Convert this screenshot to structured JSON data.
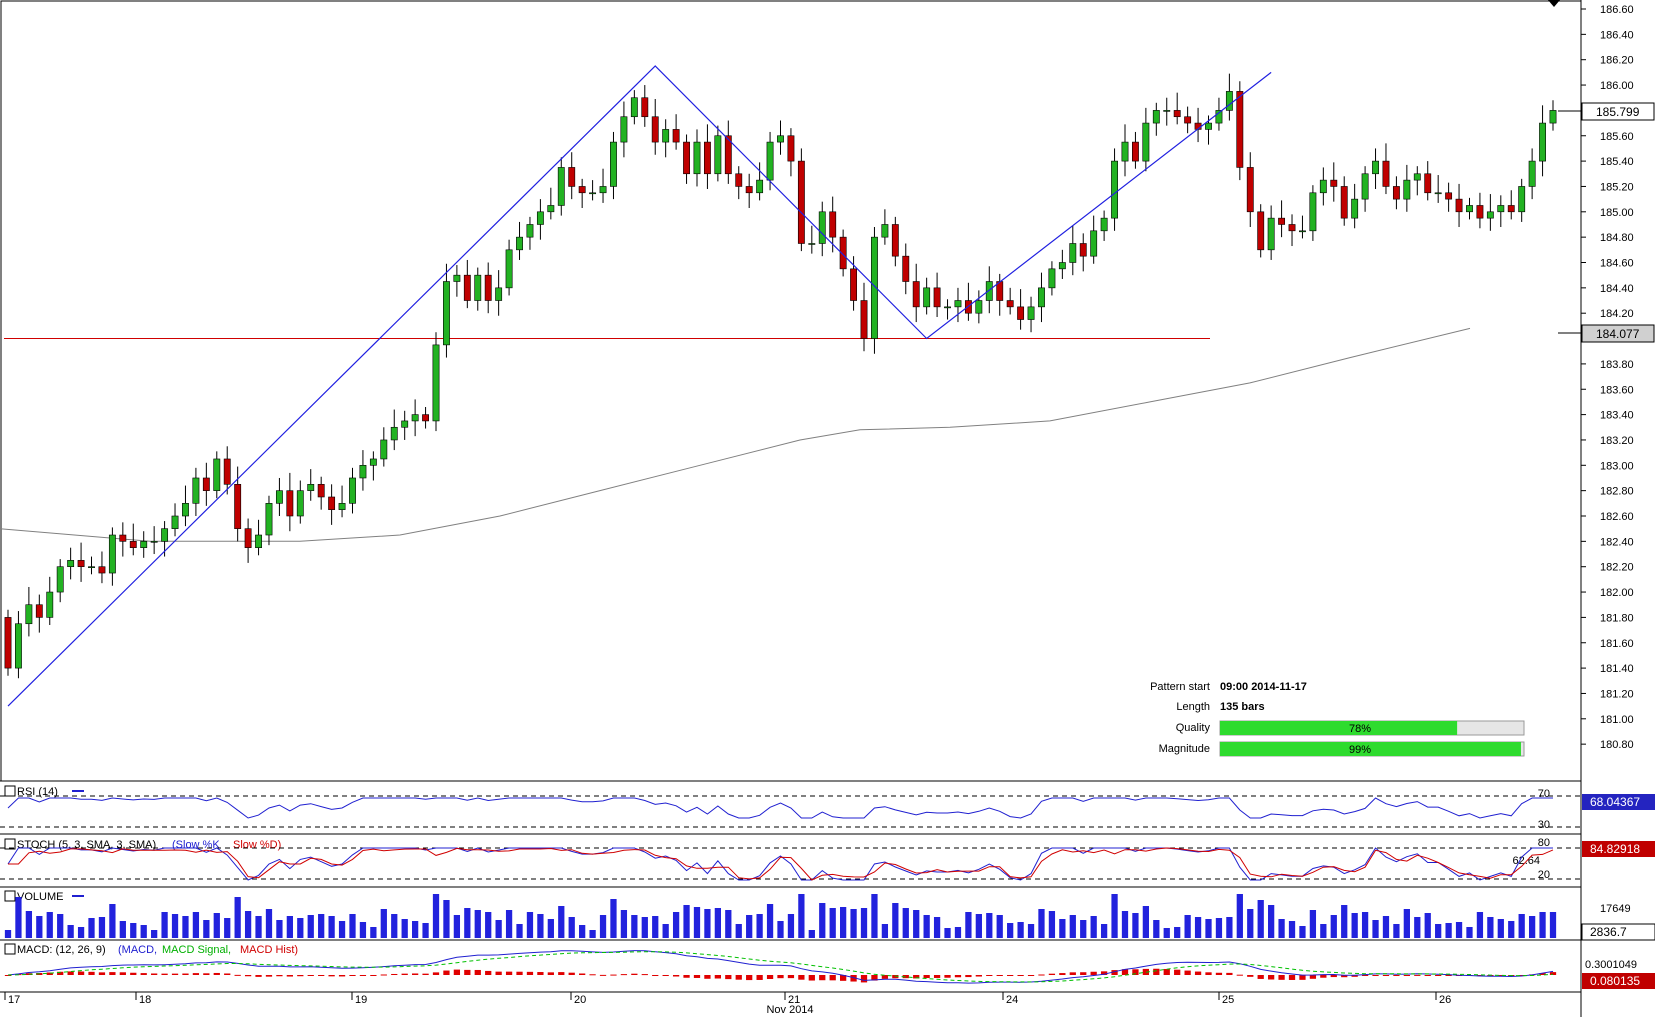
{
  "chart_data": {
    "type": "candlestick",
    "instrument_last_price": "185.799",
    "ma_value": "184.077",
    "y_ticks": [
      "186.60",
      "186.40",
      "186.20",
      "186.00",
      "185.80",
      "185.60",
      "185.40",
      "185.20",
      "185.00",
      "184.80",
      "184.60",
      "184.40",
      "184.20",
      "184.00",
      "183.80",
      "183.60",
      "183.40",
      "183.20",
      "183.00",
      "182.80",
      "182.60",
      "182.40",
      "182.20",
      "182.00",
      "181.80",
      "181.60",
      "181.40",
      "181.20",
      "181.00",
      "180.80"
    ],
    "ylim": [
      180.8,
      186.7
    ],
    "x_ticks": [
      "17",
      "18",
      "19",
      "20",
      "21",
      "24",
      "25",
      "26"
    ],
    "x_month": "Nov 2014",
    "support_level": 184.0,
    "pattern_points": [
      181.1,
      186.15,
      184.0,
      186.1
    ],
    "candles": [
      [
        181.8,
        181.4
      ],
      [
        181.4,
        181.75
      ],
      [
        181.75,
        181.9
      ],
      [
        181.9,
        181.8
      ],
      [
        181.8,
        182.0
      ],
      [
        182.0,
        182.2
      ],
      [
        182.2,
        182.25
      ],
      [
        182.25,
        182.2
      ],
      [
        182.2,
        182.2
      ],
      [
        182.2,
        182.15
      ],
      [
        182.15,
        182.45
      ],
      [
        182.45,
        182.4
      ],
      [
        182.4,
        182.35
      ],
      [
        182.35,
        182.4
      ],
      [
        182.4,
        182.4
      ],
      [
        182.4,
        182.5
      ],
      [
        182.5,
        182.6
      ],
      [
        182.6,
        182.7
      ],
      [
        182.7,
        182.9
      ],
      [
        182.9,
        182.8
      ],
      [
        182.8,
        183.05
      ],
      [
        183.05,
        182.85
      ],
      [
        182.85,
        182.5
      ],
      [
        182.5,
        182.35
      ],
      [
        182.35,
        182.45
      ],
      [
        182.45,
        182.7
      ],
      [
        182.7,
        182.8
      ],
      [
        182.8,
        182.6
      ],
      [
        182.6,
        182.8
      ],
      [
        182.8,
        182.85
      ],
      [
        182.85,
        182.75
      ],
      [
        182.75,
        182.65
      ],
      [
        182.65,
        182.7
      ],
      [
        182.7,
        182.9
      ],
      [
        182.9,
        183.0
      ],
      [
        183.0,
        183.05
      ],
      [
        183.05,
        183.2
      ],
      [
        183.2,
        183.3
      ],
      [
        183.3,
        183.35
      ],
      [
        183.35,
        183.4
      ],
      [
        183.4,
        183.35
      ],
      [
        183.35,
        183.95
      ],
      [
        183.95,
        184.45
      ],
      [
        184.45,
        184.5
      ],
      [
        184.5,
        184.3
      ],
      [
        184.3,
        184.5
      ],
      [
        184.5,
        184.3
      ],
      [
        184.3,
        184.4
      ],
      [
        184.4,
        184.7
      ],
      [
        184.7,
        184.8
      ],
      [
        184.8,
        184.9
      ],
      [
        184.9,
        185.0
      ],
      [
        185.0,
        185.05
      ],
      [
        185.05,
        185.35
      ],
      [
        185.35,
        185.2
      ],
      [
        185.2,
        185.15
      ],
      [
        185.15,
        185.15
      ],
      [
        185.15,
        185.2
      ],
      [
        185.2,
        185.55
      ],
      [
        185.55,
        185.75
      ],
      [
        185.75,
        185.9
      ],
      [
        185.9,
        185.75
      ],
      [
        185.75,
        185.55
      ],
      [
        185.55,
        185.65
      ],
      [
        185.65,
        185.55
      ],
      [
        185.55,
        185.3
      ],
      [
        185.3,
        185.55
      ],
      [
        185.55,
        185.3
      ],
      [
        185.3,
        185.6
      ],
      [
        185.6,
        185.3
      ],
      [
        185.3,
        185.2
      ],
      [
        185.2,
        185.15
      ],
      [
        185.15,
        185.25
      ],
      [
        185.25,
        185.55
      ],
      [
        185.55,
        185.6
      ],
      [
        185.6,
        185.4
      ],
      [
        185.4,
        184.75
      ],
      [
        184.75,
        184.75
      ],
      [
        184.75,
        185.0
      ],
      [
        185.0,
        184.8
      ],
      [
        184.8,
        184.55
      ],
      [
        184.55,
        184.3
      ],
      [
        184.3,
        184.0
      ],
      [
        184.0,
        184.8
      ],
      [
        184.8,
        184.9
      ],
      [
        184.9,
        184.65
      ],
      [
        184.65,
        184.45
      ],
      [
        184.45,
        184.25
      ],
      [
        184.25,
        184.4
      ],
      [
        184.4,
        184.25
      ],
      [
        184.25,
        184.25
      ],
      [
        184.25,
        184.3
      ],
      [
        184.3,
        184.2
      ],
      [
        184.2,
        184.3
      ],
      [
        184.3,
        184.45
      ],
      [
        184.45,
        184.3
      ],
      [
        184.3,
        184.25
      ],
      [
        184.25,
        184.15
      ],
      [
        184.15,
        184.25
      ],
      [
        184.25,
        184.4
      ],
      [
        184.4,
        184.55
      ],
      [
        184.55,
        184.6
      ],
      [
        184.6,
        184.75
      ],
      [
        184.75,
        184.65
      ],
      [
        184.65,
        184.85
      ],
      [
        184.85,
        184.95
      ],
      [
        184.95,
        185.4
      ],
      [
        185.4,
        185.55
      ],
      [
        185.55,
        185.4
      ],
      [
        185.4,
        185.7
      ],
      [
        185.7,
        185.8
      ],
      [
        185.8,
        185.8
      ],
      [
        185.8,
        185.75
      ],
      [
        185.75,
        185.7
      ],
      [
        185.7,
        185.65
      ],
      [
        185.65,
        185.7
      ],
      [
        185.7,
        185.8
      ],
      [
        185.8,
        185.95
      ],
      [
        185.95,
        185.35
      ],
      [
        185.35,
        185.0
      ],
      [
        185.0,
        184.7
      ],
      [
        184.7,
        184.95
      ],
      [
        184.95,
        184.9
      ],
      [
        184.9,
        184.85
      ],
      [
        184.85,
        184.85
      ],
      [
        184.85,
        185.15
      ],
      [
        185.15,
        185.25
      ],
      [
        185.25,
        185.2
      ],
      [
        185.2,
        184.95
      ],
      [
        184.95,
        185.1
      ],
      [
        185.1,
        185.3
      ],
      [
        185.3,
        185.4
      ],
      [
        185.4,
        185.2
      ],
      [
        185.2,
        185.1
      ],
      [
        185.1,
        185.25
      ],
      [
        185.25,
        185.3
      ],
      [
        185.3,
        185.15
      ],
      [
        185.15,
        185.15
      ],
      [
        185.15,
        185.1
      ],
      [
        185.1,
        185.0
      ],
      [
        185.0,
        185.05
      ],
      [
        185.05,
        184.95
      ],
      [
        184.95,
        185.0
      ],
      [
        185.0,
        185.05
      ],
      [
        185.05,
        185.0
      ],
      [
        185.0,
        185.2
      ],
      [
        185.2,
        185.4
      ],
      [
        185.4,
        185.7
      ],
      [
        185.7,
        185.8
      ]
    ],
    "ma_curve": [
      [
        0,
        182.5
      ],
      [
        150,
        182.4
      ],
      [
        300,
        182.4
      ],
      [
        400,
        182.45
      ],
      [
        500,
        182.6
      ],
      [
        600,
        182.8
      ],
      [
        700,
        183.0
      ],
      [
        800,
        183.2
      ],
      [
        860,
        183.28
      ],
      [
        950,
        183.3
      ],
      [
        1050,
        183.35
      ],
      [
        1150,
        183.5
      ],
      [
        1250,
        183.65
      ],
      [
        1350,
        183.85
      ],
      [
        1470,
        184.08
      ]
    ],
    "pattern_info": {
      "start_label": "Pattern start",
      "start_value": "09:00 2014-11-17",
      "length_label": "Length",
      "length_value": "135 bars",
      "quality_label": "Quality",
      "quality_value": "78%",
      "quality_fraction": 0.78,
      "magnitude_label": "Magnitude",
      "magnitude_value": "99%",
      "magnitude_fraction": 0.99
    },
    "indicators": {
      "rsi": {
        "title": "RSI (14)",
        "value": "68.04367",
        "levels": [
          "70",
          "30"
        ]
      },
      "stoch": {
        "title_a": "STOCH (5, 3, SMA, 3, SMA)",
        "title_b": "(Slow %K",
        "title_c": "Slow %D)",
        "value": "84.82918",
        "levels": [
          "80",
          "62.64",
          "20"
        ]
      },
      "volume": {
        "title": "VOLUME",
        "value": "2836.7",
        "level": "17649"
      },
      "macd": {
        "title_a": "MACD: (12, 26, 9)",
        "title_b": "(MACD,",
        "title_c": "MACD Signal,",
        "title_d": "MACD Hist)",
        "value": "0.080135",
        "level": "0.3001049"
      }
    }
  }
}
